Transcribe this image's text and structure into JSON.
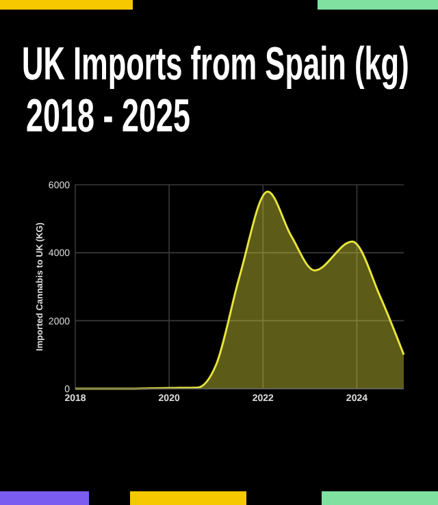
{
  "chart_data": {
    "type": "area",
    "title": "UK Imports from Spain (kg)",
    "subtitle": "2018 - 2025",
    "ylabel": "Imported Cannabis to UK (KG)",
    "x": [
      2018,
      2019,
      2020,
      2020.6,
      2021,
      2021.5,
      2022.1,
      2022.6,
      2023.1,
      2023.9,
      2024.5,
      2025
    ],
    "series": [
      {
        "color": "#e6e43c",
        "values": [
          0,
          0,
          20,
          30,
          700,
          3300,
          5800,
          4500,
          3480,
          4330,
          2700,
          1000
        ]
      }
    ],
    "xlim": [
      2018,
      2025
    ],
    "xticks": [
      2018,
      2020,
      2022,
      2024
    ],
    "ylim": [
      0,
      6000
    ],
    "yticks": [
      0,
      2000,
      4000,
      6000
    ],
    "grid": true
  }
}
